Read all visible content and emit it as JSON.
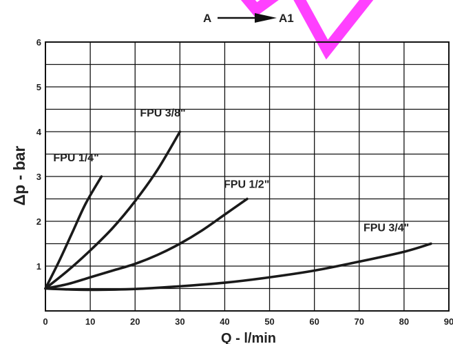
{
  "flow_direction": {
    "from": "A",
    "to": "A1"
  },
  "chart_data": {
    "type": "line",
    "xlabel": "Q - l/min",
    "ylabel": "Δp - bar",
    "xlim": [
      0,
      90
    ],
    "ylim": [
      0,
      6
    ],
    "x_ticks": [
      0,
      10,
      20,
      30,
      40,
      50,
      60,
      70,
      80,
      90
    ],
    "y_ticks": [
      1,
      2,
      3,
      4,
      5,
      6
    ],
    "grid": true,
    "legend": "none (curves labeled directly)",
    "series": [
      {
        "name": "FPU 1/4\"",
        "x": [
          0,
          3,
          6,
          9,
          12.5
        ],
        "y": [
          0.5,
          1.1,
          1.75,
          2.4,
          3.0
        ]
      },
      {
        "name": "FPU 3/8\"",
        "x": [
          0,
          5,
          10,
          15,
          20,
          25,
          30
        ],
        "y": [
          0.5,
          0.9,
          1.35,
          1.85,
          2.45,
          3.15,
          4.0
        ]
      },
      {
        "name": "FPU 1/2\"",
        "x": [
          0,
          5,
          10,
          15,
          20,
          25,
          30,
          35,
          40,
          45
        ],
        "y": [
          0.5,
          0.6,
          0.75,
          0.9,
          1.05,
          1.25,
          1.5,
          1.8,
          2.15,
          2.5
        ]
      },
      {
        "name": "FPU 3/4\"",
        "x": [
          0,
          5,
          10,
          20,
          30,
          40,
          50,
          60,
          70,
          80,
          86
        ],
        "y": [
          0.5,
          0.48,
          0.47,
          0.49,
          0.55,
          0.63,
          0.75,
          0.9,
          1.1,
          1.32,
          1.5
        ]
      }
    ]
  }
}
